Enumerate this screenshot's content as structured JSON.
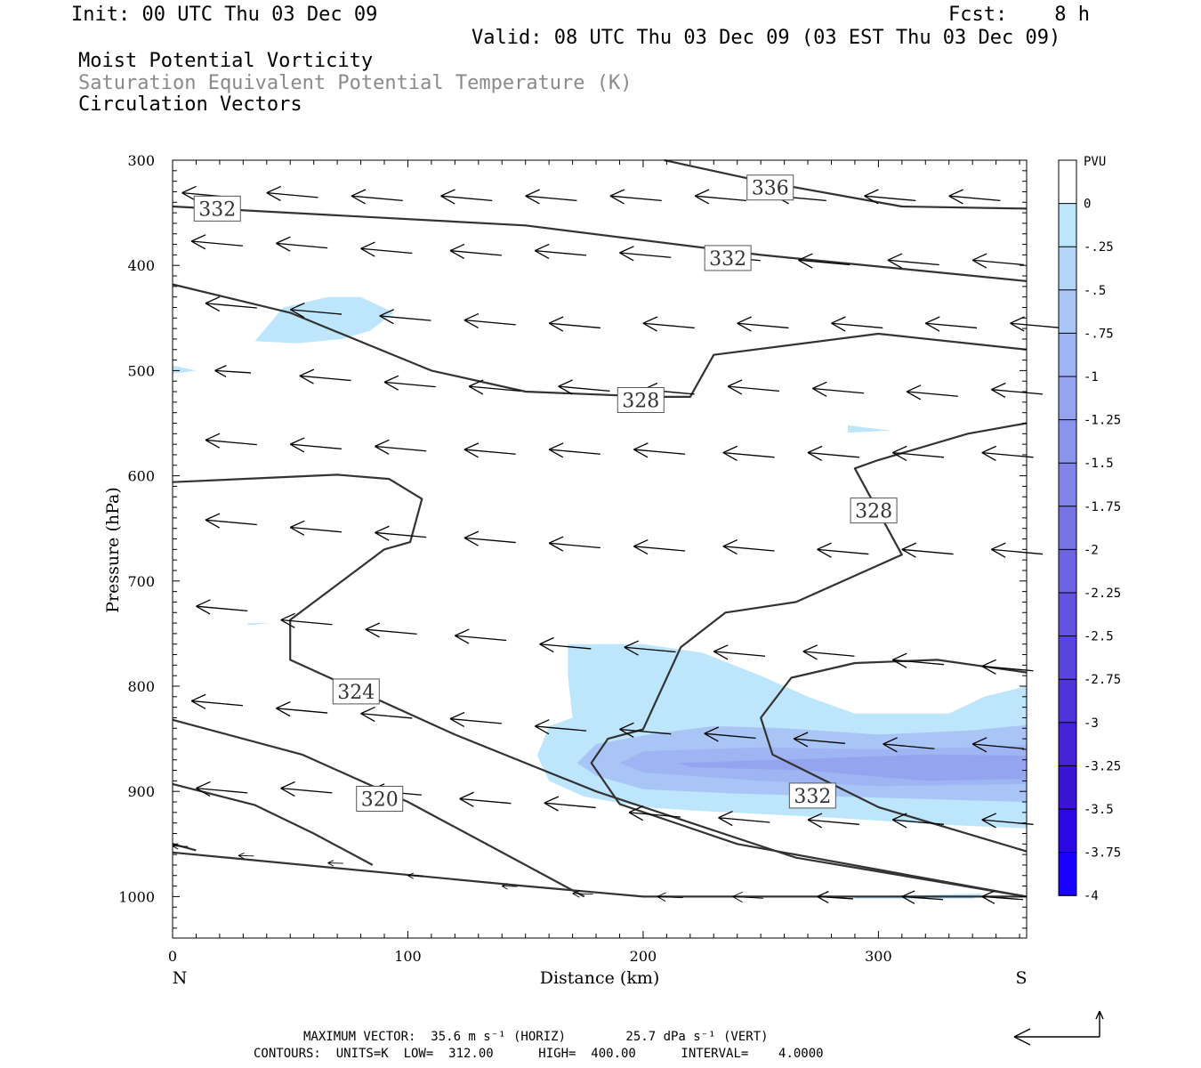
{
  "header": {
    "init": "Init: 00 UTC Thu 03 Dec 09",
    "fcst": "Fcst:    8 h",
    "valid": "Valid: 08 UTC Thu 03 Dec 09 (03 EST Thu 03 Dec 09)",
    "field1": "Moist Potential Vorticity",
    "field2": "Saturation Equivalent Potential Temperature (K)",
    "field3": "Circulation Vectors"
  },
  "footer": {
    "line1": "MAXIMUM VECTOR:  35.6 m s⁻¹ (HORIZ)        25.7 dPa s⁻¹ (VERT)",
    "line2": "CONTOURS:  UNITS=K  LOW=  312.00      HIGH=  400.00      INTERVAL=    4.0000"
  },
  "colors": {
    "contour": "#333333",
    "pv_fill": [
      "#bde5fb",
      "#aac8f6",
      "#9fb4f3",
      "#949ff0"
    ]
  },
  "chart_data": {
    "type": "contour",
    "xlabel": "Distance (km)",
    "ylabel": "Pressure (hPa)",
    "xlim": [
      0,
      363
    ],
    "ylim": [
      1040,
      300
    ],
    "x_ticks": [
      0,
      100,
      200,
      300
    ],
    "y_ticks": [
      300,
      400,
      500,
      600,
      700,
      800,
      900,
      1000
    ],
    "left_end_label": "N",
    "right_end_label": "S",
    "colorbar": {
      "title": "PVU",
      "ticks": [
        "0",
        "-.25",
        "-.5",
        "-.75",
        "-1",
        "-1.25",
        "-1.5",
        "-1.75",
        "-2",
        "-2.25",
        "-2.5",
        "-2.75",
        "-3",
        "-3.25",
        "-3.5",
        "-3.75",
        "-4"
      ],
      "colors": [
        "#ffffff",
        "#bde5fb",
        "#b3d5f8",
        "#a9c5f5",
        "#9fb4f2",
        "#95a4ef",
        "#8b94ec",
        "#8184e9",
        "#7774e6",
        "#6d64e3",
        "#6354e0",
        "#5944dd",
        "#4f34da",
        "#4524d7",
        "#3b14d4",
        "#2c08e8",
        "#1a00ff"
      ]
    },
    "contour_labels": [
      {
        "text": "336",
        "x": 254,
        "p": 326
      },
      {
        "text": "332",
        "x": 19,
        "p": 346
      },
      {
        "text": "332",
        "x": 236,
        "p": 393
      },
      {
        "text": "328",
        "x": 199,
        "p": 528
      },
      {
        "text": "328",
        "x": 298,
        "p": 633
      },
      {
        "text": "324",
        "x": 78,
        "p": 805
      },
      {
        "text": "320",
        "x": 88,
        "p": 907
      },
      {
        "text": "332",
        "x": 272,
        "p": 904
      }
    ],
    "contours": [
      [
        [
          209,
          300
        ],
        [
          250,
          320
        ],
        [
          310,
          344
        ],
        [
          363,
          346
        ]
      ],
      [
        [
          0,
          344
        ],
        [
          50,
          350
        ],
        [
          150,
          362
        ],
        [
          250,
          390
        ],
        [
          363,
          415
        ]
      ],
      [
        [
          0,
          418
        ],
        [
          50,
          445
        ],
        [
          110,
          500
        ],
        [
          150,
          520
        ],
        [
          205,
          525
        ],
        [
          220,
          525
        ],
        [
          230,
          485
        ],
        [
          300,
          465
        ],
        [
          363,
          480
        ]
      ],
      [
        [
          0,
          606
        ],
        [
          70,
          599
        ],
        [
          92,
          603
        ],
        [
          106,
          622
        ],
        [
          101,
          663
        ],
        [
          90,
          670
        ],
        [
          50,
          737
        ],
        [
          50,
          775
        ],
        [
          120,
          846
        ],
        [
          180,
          900
        ],
        [
          265,
          963
        ],
        [
          363,
          1000
        ]
      ],
      [
        [
          363,
          550
        ],
        [
          338,
          560
        ],
        [
          300,
          585
        ],
        [
          290,
          593
        ],
        [
          310,
          675
        ],
        [
          265,
          720
        ],
        [
          235,
          730
        ],
        [
          216,
          763
        ],
        [
          200,
          841
        ],
        [
          185,
          850
        ],
        [
          178,
          873
        ],
        [
          190,
          912
        ],
        [
          240,
          950
        ],
        [
          363,
          1000
        ]
      ],
      [
        [
          363,
          787
        ],
        [
          325,
          775
        ],
        [
          290,
          778
        ],
        [
          263,
          792
        ],
        [
          250,
          830
        ],
        [
          255,
          865
        ],
        [
          300,
          915
        ],
        [
          363,
          957
        ]
      ],
      [
        [
          0,
          832
        ],
        [
          55,
          865
        ],
        [
          100,
          910
        ],
        [
          150,
          970
        ],
        [
          175,
          1000
        ]
      ],
      [
        [
          0,
          893
        ],
        [
          35,
          913
        ],
        [
          60,
          940
        ],
        [
          85,
          970
        ]
      ],
      [
        [
          0,
          950
        ],
        [
          10,
          956
        ]
      ],
      [
        [
          0,
          958
        ],
        [
          150,
          990
        ],
        [
          200,
          1000
        ],
        [
          363,
          1000
        ]
      ]
    ],
    "pv_regions": [
      {
        "level": "-.25",
        "points": [
          [
            35,
            472
          ],
          [
            47,
            440
          ],
          [
            66,
            430
          ],
          [
            80,
            430
          ],
          [
            94,
            445
          ],
          [
            84,
            462
          ],
          [
            72,
            470
          ],
          [
            53,
            474
          ]
        ]
      },
      {
        "level": "-.25",
        "points": [
          [
            0,
            495
          ],
          [
            10,
            500
          ],
          [
            0,
            503
          ]
        ]
      },
      {
        "level": "-.25",
        "points": [
          [
            287,
            552
          ],
          [
            305,
            557
          ],
          [
            287,
            559
          ]
        ]
      },
      {
        "level": "-.25",
        "points": [
          [
            32,
            740
          ],
          [
            42,
            740
          ],
          [
            32,
            742
          ]
        ]
      },
      {
        "level": "-.25",
        "points": [
          [
            168,
            760
          ],
          [
            200,
            760
          ],
          [
            225,
            768
          ],
          [
            250,
            790
          ],
          [
            270,
            810
          ],
          [
            290,
            826
          ],
          [
            330,
            826
          ],
          [
            345,
            810
          ],
          [
            363,
            800
          ],
          [
            363,
            935
          ],
          [
            330,
            932
          ],
          [
            280,
            925
          ],
          [
            220,
            918
          ],
          [
            200,
            915
          ],
          [
            175,
            905
          ],
          [
            160,
            890
          ],
          [
            155,
            866
          ],
          [
            160,
            838
          ],
          [
            170,
            830
          ],
          [
            168,
            790
          ]
        ]
      },
      {
        "level": "-.25",
        "points": [
          [
            290,
            1000
          ],
          [
            345,
            997
          ],
          [
            340,
            1002
          ],
          [
            290,
            1002
          ]
        ]
      },
      {
        "level": "-.75",
        "points": [
          [
            180,
            855
          ],
          [
            205,
            845
          ],
          [
            230,
            838
          ],
          [
            260,
            840
          ],
          [
            300,
            846
          ],
          [
            340,
            842
          ],
          [
            363,
            837
          ],
          [
            363,
            910
          ],
          [
            300,
            906
          ],
          [
            240,
            902
          ],
          [
            200,
            898
          ],
          [
            180,
            885
          ],
          [
            172,
            873
          ]
        ]
      },
      {
        "level": "-1",
        "points": [
          [
            200,
            862
          ],
          [
            250,
            858
          ],
          [
            300,
            860
          ],
          [
            340,
            858
          ],
          [
            363,
            856
          ],
          [
            363,
            893
          ],
          [
            300,
            895
          ],
          [
            250,
            890
          ],
          [
            200,
            882
          ],
          [
            190,
            873
          ]
        ]
      },
      {
        "level": "-1.25",
        "points": [
          [
            215,
            873
          ],
          [
            270,
            869
          ],
          [
            320,
            865
          ],
          [
            363,
            866
          ],
          [
            363,
            888
          ],
          [
            320,
            890
          ],
          [
            270,
            880
          ],
          [
            220,
            877
          ]
        ]
      }
    ],
    "vectors_note": "circulation vectors, dominant direction toward north (left)",
    "vectors": [
      [
        4,
        331,
        1.0
      ],
      [
        40,
        331,
        1.0
      ],
      [
        76,
        334,
        1.0
      ],
      [
        114,
        334,
        1.0
      ],
      [
        150,
        334,
        1.0
      ],
      [
        186,
        334,
        1.0
      ],
      [
        222,
        334,
        1.0
      ],
      [
        256,
        334,
        1.0
      ],
      [
        294,
        334,
        1.0
      ],
      [
        330,
        334,
        1.0
      ],
      [
        8,
        377,
        1.0
      ],
      [
        44,
        379,
        1.0
      ],
      [
        80,
        384,
        1.0
      ],
      [
        118,
        386,
        1.0
      ],
      [
        154,
        386,
        1.0
      ],
      [
        190,
        388,
        1.0
      ],
      [
        228,
        391,
        1.0
      ],
      [
        266,
        395,
        1.0
      ],
      [
        304,
        395,
        1.0
      ],
      [
        340,
        395,
        1.0
      ],
      [
        14,
        436,
        1.0
      ],
      [
        50,
        442,
        1.0
      ],
      [
        88,
        448,
        1.0
      ],
      [
        124,
        452,
        1.0
      ],
      [
        160,
        455,
        1.0
      ],
      [
        200,
        455,
        1.0
      ],
      [
        240,
        455,
        1.0
      ],
      [
        280,
        455,
        1.0
      ],
      [
        320,
        455,
        1.0
      ],
      [
        356,
        455,
        1.0
      ],
      [
        18,
        500,
        0.7
      ],
      [
        54,
        505,
        1.0
      ],
      [
        90,
        511,
        1.0
      ],
      [
        126,
        515,
        1.0
      ],
      [
        164,
        515,
        1.0
      ],
      [
        200,
        518,
        1.0
      ],
      [
        236,
        515,
        1.0
      ],
      [
        272,
        517,
        1.0
      ],
      [
        312,
        520,
        1.0
      ],
      [
        348,
        518,
        1.0
      ],
      [
        14,
        566,
        1.0
      ],
      [
        50,
        570,
        1.0
      ],
      [
        86,
        572,
        1.0
      ],
      [
        124,
        575,
        1.0
      ],
      [
        160,
        575,
        1.0
      ],
      [
        196,
        575,
        1.0
      ],
      [
        234,
        578,
        1.0
      ],
      [
        270,
        578,
        1.0
      ],
      [
        306,
        578,
        1.0
      ],
      [
        344,
        578,
        1.0
      ],
      [
        14,
        642,
        1.0
      ],
      [
        50,
        649,
        1.0
      ],
      [
        86,
        654,
        1.0
      ],
      [
        124,
        659,
        1.0
      ],
      [
        160,
        664,
        1.0
      ],
      [
        196,
        667,
        1.0
      ],
      [
        234,
        667,
        1.0
      ],
      [
        274,
        670,
        1.0
      ],
      [
        310,
        670,
        1.0
      ],
      [
        348,
        670,
        1.0
      ],
      [
        10,
        724,
        1.0
      ],
      [
        46,
        737,
        1.0
      ],
      [
        82,
        746,
        1.0
      ],
      [
        120,
        752,
        1.0
      ],
      [
        156,
        760,
        1.0
      ],
      [
        192,
        763,
        1.0
      ],
      [
        230,
        767,
        1.0
      ],
      [
        268,
        767,
        1.0
      ],
      [
        306,
        775,
        1.0
      ],
      [
        344,
        781,
        1.0
      ],
      [
        8,
        814,
        1.0
      ],
      [
        44,
        821,
        1.0
      ],
      [
        80,
        826,
        1.0
      ],
      [
        118,
        831,
        1.0
      ],
      [
        154,
        838,
        1.0
      ],
      [
        190,
        841,
        1.0
      ],
      [
        226,
        845,
        1.0
      ],
      [
        264,
        850,
        1.0
      ],
      [
        302,
        855,
        1.0
      ],
      [
        340,
        855,
        1.0
      ],
      [
        10,
        897,
        1.0
      ],
      [
        46,
        897,
        1.0
      ],
      [
        84,
        899,
        1.0
      ],
      [
        122,
        907,
        1.0
      ],
      [
        158,
        911,
        1.0
      ],
      [
        194,
        920,
        1.0
      ],
      [
        232,
        925,
        1.0
      ],
      [
        270,
        927,
        1.0
      ],
      [
        306,
        927,
        1.0
      ],
      [
        344,
        927,
        1.0
      ],
      [
        0,
        952,
        0.3
      ],
      [
        28,
        961,
        0.3
      ],
      [
        66,
        968,
        0.3
      ],
      [
        100,
        980,
        0.3
      ],
      [
        140,
        990,
        0.3
      ],
      [
        170,
        997,
        0.4
      ],
      [
        206,
        1000,
        0.5
      ],
      [
        238,
        1000,
        0.6
      ],
      [
        274,
        1000,
        0.7
      ],
      [
        310,
        1000,
        0.8
      ],
      [
        344,
        1000,
        0.8
      ]
    ]
  }
}
